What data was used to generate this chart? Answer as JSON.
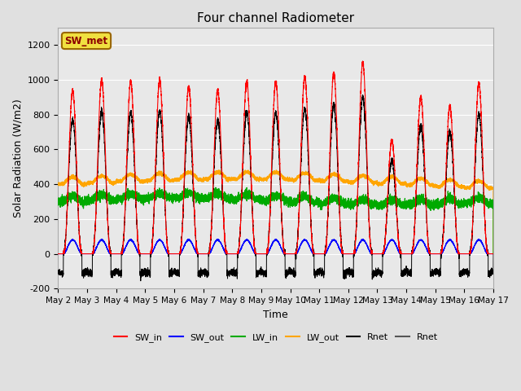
{
  "title": "Four channel Radiometer",
  "xlabel": "Time",
  "ylabel": "Solar Radiation (W/m2)",
  "ylim": [
    -200,
    1300
  ],
  "xlim": [
    0,
    15
  ],
  "xtick_labels": [
    "May 2",
    "May 3",
    "May 4",
    "May 5",
    "May 6",
    "May 7",
    "May 8",
    "May 9",
    "May 10",
    "May 11",
    "May 12",
    "May 13",
    "May 14",
    "May 15",
    "May 16",
    "May 17"
  ],
  "ytick_values": [
    -200,
    0,
    200,
    400,
    600,
    800,
    1000,
    1200
  ],
  "background_color": "#e0e0e0",
  "plot_bg_color": "#e8e8e8",
  "station_label": "SW_met",
  "SW_in_peaks": [
    940,
    1000,
    990,
    1000,
    960,
    940,
    990,
    990,
    1020,
    1040,
    1100,
    650,
    900,
    850,
    980
  ],
  "SW_out_peak": 80,
  "LW_in_base": 300,
  "LW_out_base": 400,
  "Rnet_night": -100,
  "num_days": 15,
  "legend_entries": [
    {
      "label": "SW_in",
      "color": "#ff0000"
    },
    {
      "label": "SW_out",
      "color": "#0000ff"
    },
    {
      "label": "LW_in",
      "color": "#00aa00"
    },
    {
      "label": "LW_out",
      "color": "#ffa500"
    },
    {
      "label": "Rnet",
      "color": "#000000"
    },
    {
      "label": "Rnet",
      "color": "#555555"
    }
  ]
}
